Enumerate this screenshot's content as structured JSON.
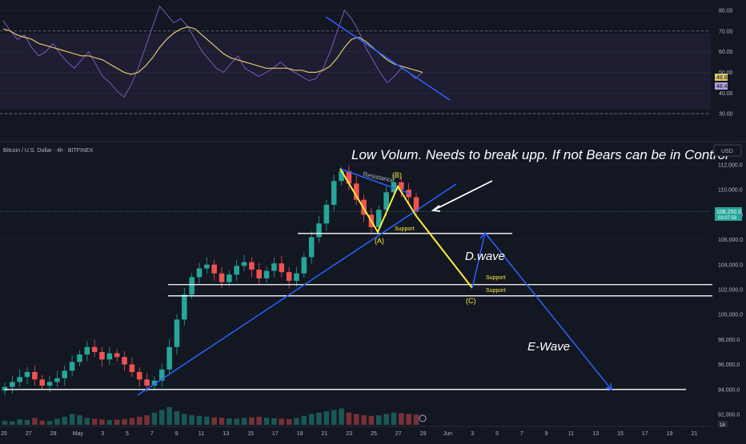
{
  "symbol_title": "Bitcoin / U.S. Dollar · 4h · BITFINEX",
  "currency": "USD",
  "badge_count": "18",
  "price_tag": {
    "value": "108,250.0",
    "time": "03:07:58"
  },
  "rsi_tags": [
    "48.81",
    "48.45"
  ],
  "annotations": {
    "note": "Low Volum. Needs to break upp. If not Bears can be in Control",
    "resistance": "Resistance",
    "support_a": "Support",
    "support_b": "Support",
    "support_c": "Support",
    "wave_a": "(A)",
    "wave_b": "(B)",
    "wave_c": "(C)",
    "d_wave": "D.wave",
    "e_wave": "E-Wave"
  },
  "colors": {
    "background": "#131722",
    "bull": "#26a69a",
    "bear": "#ef5350",
    "rsi": "#7e57c2",
    "rsi_ma": "#e0c56e",
    "trendline": "#2962ff",
    "wave": "#ffeb3b"
  },
  "chart_data": [
    {
      "type": "line",
      "title": "",
      "x_ticks": [
        "25",
        "27",
        "29",
        "May",
        "3",
        "5",
        "7",
        "9",
        "11",
        "13",
        "15",
        "17",
        "19",
        "21",
        "23",
        "25",
        "27",
        "29",
        "Jun",
        "3",
        "5",
        "7",
        "9",
        "11",
        "13",
        "15",
        "17",
        "19",
        "21"
      ],
      "ylim": [
        25,
        85
      ],
      "y_ticks": [
        "80.00",
        "70.00",
        "60.00",
        "50.00",
        "40.00",
        "30.00"
      ],
      "bands": [
        30,
        70
      ],
      "series": [
        {
          "values": [
            75,
            70,
            66,
            68,
            62,
            58,
            60,
            64,
            59,
            55,
            52,
            56,
            60,
            54,
            48,
            45,
            41,
            38,
            44,
            52,
            62,
            72,
            82,
            78,
            74,
            76,
            72,
            66,
            60,
            56,
            52,
            50,
            54,
            58,
            52,
            50,
            48,
            50,
            52,
            55,
            52,
            50,
            48,
            46,
            47,
            52,
            60,
            70,
            80,
            76,
            70,
            62,
            56,
            50,
            45,
            48,
            52,
            50,
            47,
            50
          ]
        },
        {
          "values": [
            71,
            70,
            68,
            67,
            66,
            64,
            63,
            62,
            61,
            60,
            59,
            58,
            58,
            57,
            56,
            54,
            52,
            50,
            49,
            50,
            53,
            57,
            62,
            66,
            69,
            71,
            72,
            71,
            68,
            65,
            62,
            59,
            57,
            56,
            55,
            54,
            53,
            52,
            52,
            52,
            52,
            51,
            51,
            50,
            50,
            51,
            53,
            57,
            62,
            66,
            67,
            65,
            62,
            59,
            56,
            54,
            53,
            52,
            51,
            50
          ]
        }
      ]
    },
    {
      "type": "candlestick",
      "title": "",
      "ylim": [
        91000,
        113000
      ],
      "y_ticks": [
        "112,000.0",
        "110,000.0",
        "108,000.0",
        "106,000.0",
        "104,000.0",
        "102,000.0",
        "100,000.0",
        "98,000.0",
        "96,000.0",
        "94,000.0",
        "92,000.0"
      ],
      "levels": [
        106500,
        102400,
        101500,
        94000
      ],
      "closes": [
        94200,
        94600,
        95000,
        95400,
        94800,
        94300,
        94600,
        94900,
        95500,
        96200,
        96800,
        97400,
        97000,
        96400,
        96900,
        96600,
        96000,
        95400,
        94800,
        94300,
        94700,
        95600,
        97400,
        99600,
        101600,
        103000,
        103700,
        104000,
        103300,
        102600,
        103200,
        103900,
        104200,
        103600,
        102900,
        103500,
        104100,
        103400,
        102700,
        103300,
        104600,
        106200,
        107300,
        108800,
        110700,
        111500,
        110500,
        109200,
        108000,
        107000,
        108400,
        109800,
        110600,
        110000,
        109400,
        108250
      ],
      "volume": [
        300,
        250,
        400,
        350,
        500,
        300,
        280,
        450,
        600,
        800,
        700,
        500,
        450,
        400,
        350,
        380,
        420,
        500,
        600,
        700,
        900,
        1100,
        1300,
        1000,
        800,
        700,
        650,
        600,
        550,
        520,
        480,
        450,
        500,
        550,
        600,
        520,
        480,
        450,
        420,
        500,
        650,
        800,
        900,
        1000,
        1100,
        1200,
        900,
        800,
        700,
        650,
        700,
        800,
        900,
        850,
        800,
        750
      ]
    }
  ]
}
